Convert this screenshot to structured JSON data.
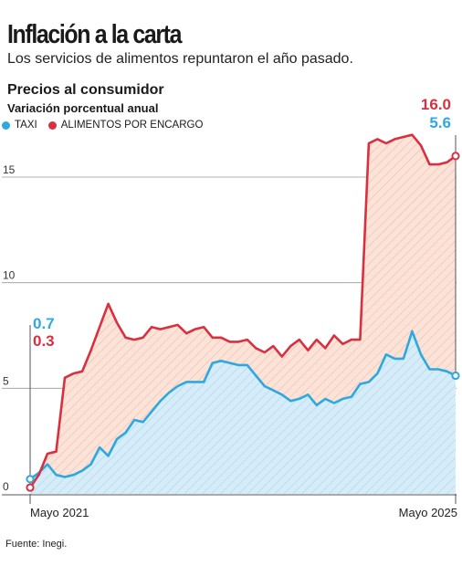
{
  "header": {
    "title": "Inflación a la carta",
    "subtitle": "Los servicios de alimentos repuntaron el año pasado."
  },
  "chart_heading": "Precios al consumidor",
  "chart_subheading": "Variación porcentual anual",
  "source": "Fuente: Inegi.",
  "colors": {
    "taxi": "#2ea8df",
    "alimentos": "#d9303f",
    "taxi_fill": "#d6ecf8",
    "alimentos_fill": "#fbe3d8",
    "grid": "#9a9a9a"
  },
  "chart_data": {
    "type": "line",
    "title": "Precios al consumidor",
    "ylabel": "Variación porcentual anual",
    "ylim": [
      0,
      17
    ],
    "yticks": [
      0,
      5,
      10,
      15
    ],
    "x_tick_labels": [
      "Mayo 2021",
      "Mayo 2025"
    ],
    "series": [
      {
        "name": "TAXI",
        "color": "#2ea8df",
        "start_label": "0.7",
        "end_label": "5.6",
        "values": [
          0.7,
          1.0,
          1.4,
          0.9,
          0.8,
          0.9,
          1.1,
          1.4,
          2.2,
          1.8,
          2.6,
          2.9,
          3.5,
          3.4,
          3.9,
          4.4,
          4.8,
          5.1,
          5.3,
          5.3,
          5.3,
          6.2,
          6.3,
          6.2,
          6.1,
          6.1,
          5.6,
          5.1,
          4.9,
          4.7,
          4.4,
          4.5,
          4.7,
          4.2,
          4.5,
          4.3,
          4.5,
          4.6,
          5.2,
          5.3,
          5.7,
          6.6,
          6.4,
          6.4,
          7.7,
          6.6,
          5.9,
          5.9,
          5.8,
          5.6
        ]
      },
      {
        "name": "ALIMENTOS POR ENCARGO",
        "color": "#d9303f",
        "start_label": "0.3",
        "end_label": "16.0",
        "values": [
          0.3,
          0.9,
          1.9,
          2.0,
          5.5,
          5.7,
          5.8,
          6.8,
          7.9,
          9.0,
          8.1,
          7.4,
          7.3,
          7.4,
          7.9,
          7.8,
          7.9,
          8.0,
          7.6,
          7.8,
          7.9,
          7.4,
          7.4,
          7.2,
          7.2,
          7.3,
          6.9,
          6.7,
          7.0,
          6.5,
          7.0,
          7.3,
          6.8,
          7.3,
          6.9,
          7.5,
          7.1,
          7.3,
          7.3,
          16.6,
          16.8,
          16.6,
          16.8,
          16.9,
          17.0,
          16.5,
          15.6,
          15.6,
          15.7,
          16.0
        ]
      }
    ]
  }
}
